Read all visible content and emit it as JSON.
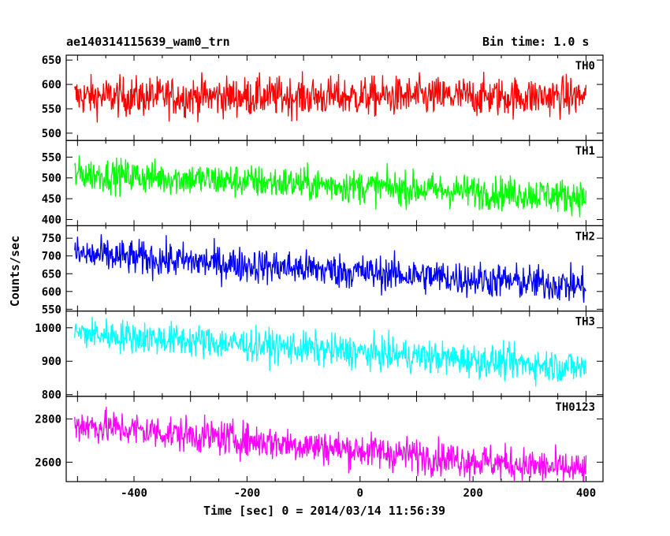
{
  "header": {
    "title_left": "ae140314115639_wam0_trn",
    "title_right": "Bin time: 1.0 s"
  },
  "chart_data": {
    "type": "line",
    "title": "ae140314115639_wam0_trn",
    "subtitle": "Bin time: 1.0 s",
    "xlabel": "Time [sec] 0 = 2014/03/14 11:56:39",
    "ylabel": "Counts/sec",
    "xlim": [
      -520,
      430
    ],
    "x_range_data": [
      -505,
      400
    ],
    "x_ticks": [
      -400,
      -200,
      0,
      200,
      400
    ],
    "panels": [
      {
        "name": "TH0",
        "color": "#ff0000",
        "ylim": [
          485,
          660
        ],
        "yticks": [
          500,
          550,
          600,
          650
        ],
        "trend_start": 575,
        "trend_end": 575,
        "noise_amplitude": 45
      },
      {
        "name": "TH1",
        "color": "#00ff00",
        "ylim": [
          385,
          590
        ],
        "yticks": [
          400,
          450,
          500,
          550
        ],
        "trend_start": 510,
        "trend_end": 455,
        "noise_amplitude": 45
      },
      {
        "name": "TH2",
        "color": "#0000ff",
        "ylim": [
          545,
          785
        ],
        "yticks": [
          550,
          600,
          650,
          700,
          750
        ],
        "trend_start": 705,
        "trend_end": 615,
        "noise_amplitude": 55
      },
      {
        "name": "TH3",
        "color": "#00ffff",
        "ylim": [
          795,
          1050
        ],
        "yticks": [
          800,
          900,
          1000
        ],
        "trend_start": 985,
        "trend_end": 880,
        "noise_amplitude": 55
      },
      {
        "name": "TH0123",
        "color": "#ff00ff",
        "ylim": [
          2510,
          2905
        ],
        "yticks": [
          2600,
          2800
        ],
        "trend_start": 2775,
        "trend_end": 2560,
        "noise_amplitude": 90
      }
    ]
  }
}
